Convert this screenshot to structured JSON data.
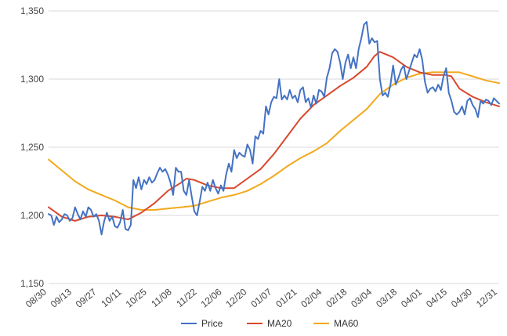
{
  "chart_data": {
    "type": "line",
    "title": "",
    "xlabel": "",
    "ylabel": "",
    "ylim": [
      1150,
      1350
    ],
    "yticks": [
      1150,
      1200,
      1250,
      1300,
      1350
    ],
    "ytick_labels": [
      "1,150",
      "1,200",
      "1,250",
      "1,300",
      "1,350"
    ],
    "xtick_labels": [
      "08/30",
      "09/13",
      "09/27",
      "10/11",
      "10/25",
      "11/08",
      "11/22",
      "12/06",
      "12/20",
      "01/07",
      "01/21",
      "02/04",
      "02/18",
      "03/04",
      "03/18",
      "04/01",
      "04/15",
      "04/30",
      "12/31"
    ],
    "grid": "horizontal",
    "legend": "bottom",
    "series": [
      {
        "name": "Price",
        "color": "#4472C4",
        "points": [
          [
            0,
            1201
          ],
          [
            0.1,
            1200
          ],
          [
            0.2,
            1193
          ],
          [
            0.3,
            1199
          ],
          [
            0.4,
            1195
          ],
          [
            0.5,
            1197
          ],
          [
            0.6,
            1201
          ],
          [
            0.7,
            1200
          ],
          [
            0.8,
            1196
          ],
          [
            0.9,
            1198
          ],
          [
            1.0,
            1206
          ],
          [
            1.1,
            1201
          ],
          [
            1.2,
            1197
          ],
          [
            1.3,
            1203
          ],
          [
            1.4,
            1199
          ],
          [
            1.5,
            1206
          ],
          [
            1.6,
            1204
          ],
          [
            1.7,
            1199
          ],
          [
            1.8,
            1201
          ],
          [
            1.9,
            1196
          ],
          [
            2.0,
            1186
          ],
          [
            2.1,
            1196
          ],
          [
            2.2,
            1202
          ],
          [
            2.3,
            1196
          ],
          [
            2.4,
            1199
          ],
          [
            2.5,
            1192
          ],
          [
            2.6,
            1191
          ],
          [
            2.7,
            1195
          ],
          [
            2.8,
            1204
          ],
          [
            2.9,
            1190
          ],
          [
            3.0,
            1189
          ],
          [
            3.1,
            1193
          ],
          [
            3.2,
            1226
          ],
          [
            3.3,
            1220
          ],
          [
            3.4,
            1228
          ],
          [
            3.5,
            1219
          ],
          [
            3.6,
            1226
          ],
          [
            3.7,
            1223
          ],
          [
            3.8,
            1228
          ],
          [
            3.9,
            1224
          ],
          [
            4.0,
            1226
          ],
          [
            4.1,
            1231
          ],
          [
            4.2,
            1235
          ],
          [
            4.3,
            1232
          ],
          [
            4.4,
            1234
          ],
          [
            4.5,
            1230
          ],
          [
            4.6,
            1224
          ],
          [
            4.7,
            1215
          ],
          [
            4.8,
            1235
          ],
          [
            4.9,
            1232
          ],
          [
            5.0,
            1232
          ],
          [
            5.1,
            1218
          ],
          [
            5.2,
            1215
          ],
          [
            5.3,
            1226
          ],
          [
            5.4,
            1214
          ],
          [
            5.5,
            1203
          ],
          [
            5.6,
            1200
          ],
          [
            5.7,
            1210
          ],
          [
            5.8,
            1221
          ],
          [
            5.9,
            1218
          ],
          [
            6.0,
            1224
          ],
          [
            6.1,
            1218
          ],
          [
            6.2,
            1226
          ],
          [
            6.3,
            1220
          ],
          [
            6.4,
            1216
          ],
          [
            6.5,
            1222
          ],
          [
            6.6,
            1218
          ],
          [
            6.7,
            1230
          ],
          [
            6.8,
            1238
          ],
          [
            6.9,
            1232
          ],
          [
            7.0,
            1248
          ],
          [
            7.1,
            1242
          ],
          [
            7.2,
            1246
          ],
          [
            7.3,
            1244
          ],
          [
            7.4,
            1243
          ],
          [
            7.5,
            1252
          ],
          [
            7.6,
            1248
          ],
          [
            7.7,
            1238
          ],
          [
            7.8,
            1258
          ],
          [
            7.9,
            1256
          ],
          [
            8.0,
            1262
          ],
          [
            8.1,
            1260
          ],
          [
            8.2,
            1280
          ],
          [
            8.3,
            1274
          ],
          [
            8.4,
            1283
          ],
          [
            8.5,
            1287
          ],
          [
            8.6,
            1286
          ],
          [
            8.7,
            1300
          ],
          [
            8.8,
            1285
          ],
          [
            8.9,
            1288
          ],
          [
            9.0,
            1285
          ],
          [
            9.1,
            1292
          ],
          [
            9.2,
            1286
          ],
          [
            9.3,
            1288
          ],
          [
            9.4,
            1283
          ],
          [
            9.5,
            1292
          ],
          [
            9.6,
            1294
          ],
          [
            9.7,
            1283
          ],
          [
            9.8,
            1286
          ],
          [
            9.9,
            1279
          ],
          [
            10.0,
            1288
          ],
          [
            10.1,
            1282
          ],
          [
            10.2,
            1292
          ],
          [
            10.3,
            1291
          ],
          [
            10.4,
            1287
          ],
          [
            10.5,
            1301
          ],
          [
            10.6,
            1308
          ],
          [
            10.7,
            1319
          ],
          [
            10.8,
            1322
          ],
          [
            10.9,
            1320
          ],
          [
            11.0,
            1312
          ],
          [
            11.1,
            1300
          ],
          [
            11.2,
            1312
          ],
          [
            11.3,
            1318
          ],
          [
            11.4,
            1308
          ],
          [
            11.5,
            1316
          ],
          [
            11.6,
            1308
          ],
          [
            11.7,
            1322
          ],
          [
            11.8,
            1330
          ],
          [
            11.9,
            1340
          ],
          [
            12.0,
            1342
          ],
          [
            12.1,
            1326
          ],
          [
            12.2,
            1330
          ],
          [
            12.3,
            1327
          ],
          [
            12.4,
            1328
          ],
          [
            12.5,
            1300
          ],
          [
            12.6,
            1288
          ],
          [
            12.7,
            1290
          ],
          [
            12.8,
            1287
          ],
          [
            12.9,
            1296
          ],
          [
            13.0,
            1310
          ],
          [
            13.1,
            1296
          ],
          [
            13.2,
            1301
          ],
          [
            13.3,
            1307
          ],
          [
            13.4,
            1310
          ],
          [
            13.5,
            1300
          ],
          [
            13.6,
            1306
          ],
          [
            13.7,
            1312
          ],
          [
            13.8,
            1318
          ],
          [
            13.9,
            1316
          ],
          [
            14.0,
            1322
          ],
          [
            14.1,
            1314
          ],
          [
            14.2,
            1298
          ],
          [
            14.3,
            1290
          ],
          [
            14.4,
            1293
          ],
          [
            14.5,
            1294
          ],
          [
            14.6,
            1291
          ],
          [
            14.7,
            1296
          ],
          [
            14.8,
            1292
          ],
          [
            14.9,
            1302
          ],
          [
            15.0,
            1308
          ],
          [
            15.1,
            1290
          ],
          [
            15.2,
            1284
          ],
          [
            15.3,
            1276
          ],
          [
            15.4,
            1274
          ],
          [
            15.5,
            1276
          ],
          [
            15.6,
            1280
          ],
          [
            15.7,
            1274
          ],
          [
            15.8,
            1284
          ],
          [
            15.9,
            1286
          ],
          [
            16.0,
            1281
          ],
          [
            16.1,
            1278
          ],
          [
            16.2,
            1272
          ],
          [
            16.3,
            1284
          ],
          [
            16.4,
            1282
          ],
          [
            16.5,
            1285
          ],
          [
            16.6,
            1284
          ],
          [
            16.7,
            1281
          ],
          [
            16.8,
            1286
          ],
          [
            16.9,
            1284
          ],
          [
            17.0,
            1282
          ]
        ]
      },
      {
        "name": "MA20",
        "color": "#D9482B",
        "points": [
          [
            0,
            1206
          ],
          [
            0.5,
            1199
          ],
          [
            1.0,
            1196
          ],
          [
            1.5,
            1199
          ],
          [
            2.0,
            1200
          ],
          [
            2.5,
            1199
          ],
          [
            3.0,
            1197
          ],
          [
            3.5,
            1202
          ],
          [
            4.0,
            1209
          ],
          [
            4.5,
            1218
          ],
          [
            5.0,
            1224
          ],
          [
            5.2,
            1227
          ],
          [
            5.5,
            1226
          ],
          [
            6.0,
            1222
          ],
          [
            6.5,
            1220
          ],
          [
            7.0,
            1220
          ],
          [
            7.5,
            1227
          ],
          [
            8.0,
            1234
          ],
          [
            8.5,
            1245
          ],
          [
            9.0,
            1258
          ],
          [
            9.5,
            1271
          ],
          [
            10.0,
            1281
          ],
          [
            10.5,
            1288
          ],
          [
            11.0,
            1295
          ],
          [
            11.5,
            1301
          ],
          [
            12.0,
            1309
          ],
          [
            12.3,
            1317
          ],
          [
            12.5,
            1320
          ],
          [
            13.0,
            1316
          ],
          [
            13.5,
            1309
          ],
          [
            14.0,
            1305
          ],
          [
            14.5,
            1303
          ],
          [
            15.0,
            1303
          ],
          [
            15.2,
            1302
          ],
          [
            15.5,
            1293
          ],
          [
            16.0,
            1287
          ],
          [
            16.5,
            1283
          ],
          [
            17.0,
            1280
          ]
        ]
      },
      {
        "name": "MA60",
        "color": "#F2A91E",
        "points": [
          [
            0,
            1241
          ],
          [
            0.5,
            1233
          ],
          [
            1.0,
            1225
          ],
          [
            1.5,
            1219
          ],
          [
            2.0,
            1215
          ],
          [
            2.5,
            1211
          ],
          [
            3.0,
            1206
          ],
          [
            3.5,
            1204
          ],
          [
            4.0,
            1204
          ],
          [
            4.5,
            1205
          ],
          [
            5.0,
            1206
          ],
          [
            5.5,
            1207
          ],
          [
            6.0,
            1210
          ],
          [
            6.5,
            1213
          ],
          [
            7.0,
            1215
          ],
          [
            7.5,
            1218
          ],
          [
            8.0,
            1223
          ],
          [
            8.5,
            1229
          ],
          [
            9.0,
            1236
          ],
          [
            9.5,
            1242
          ],
          [
            10.0,
            1247
          ],
          [
            10.5,
            1253
          ],
          [
            11.0,
            1262
          ],
          [
            11.5,
            1270
          ],
          [
            12.0,
            1278
          ],
          [
            12.5,
            1289
          ],
          [
            13.0,
            1296
          ],
          [
            13.5,
            1301
          ],
          [
            14.0,
            1304
          ],
          [
            14.5,
            1305
          ],
          [
            15.0,
            1305
          ],
          [
            15.5,
            1305
          ],
          [
            16.0,
            1302
          ],
          [
            16.5,
            1299
          ],
          [
            17.0,
            1297
          ]
        ]
      }
    ]
  }
}
